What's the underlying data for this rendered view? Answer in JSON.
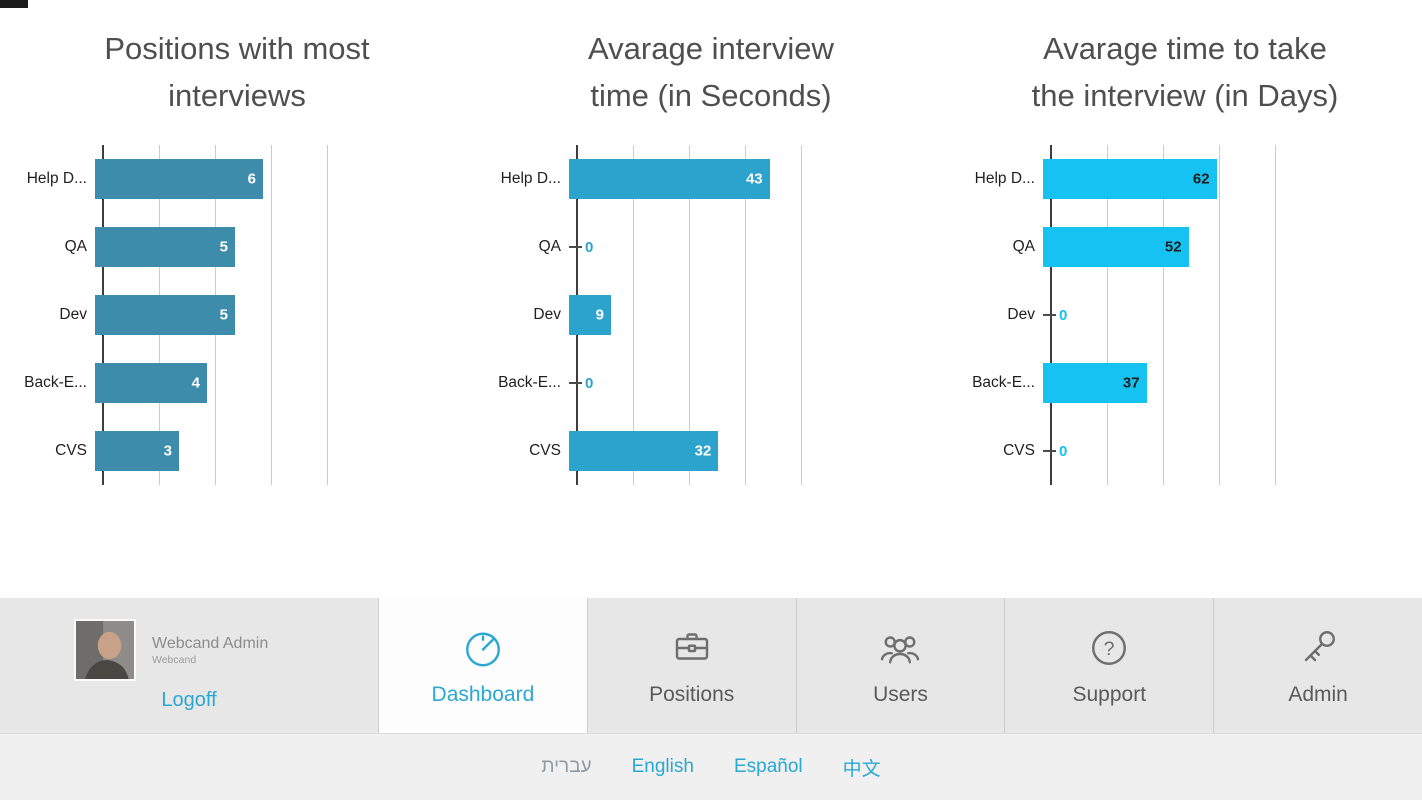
{
  "colors": {
    "accent": "#2aa7d2",
    "language_muted": "#8d9aa3",
    "nav_background": "#e7e7e7",
    "footer_background": "#f0f0f0"
  },
  "chart_data": [
    {
      "type": "bar",
      "orientation": "horizontal",
      "title": "Positions with most interviews",
      "title_display": "Positions with most\ninterviews",
      "categories": [
        "Help D...",
        "QA",
        "Dev",
        "Back-E...",
        "CVS"
      ],
      "values": [
        6,
        5,
        5,
        4,
        3
      ],
      "axis_max": 8,
      "gridlines": 5,
      "grid_on": true,
      "legend": "none",
      "bar_color": "#3e8cab",
      "value_label_color": "#ffffff"
    },
    {
      "type": "bar",
      "orientation": "horizontal",
      "title": "Avarage interview time (in Seconds)",
      "title_display": "Avarage interview\ntime (in Seconds)",
      "categories": [
        "Help D...",
        "QA",
        "Dev",
        "Back-E...",
        "CVS"
      ],
      "values": [
        43,
        0,
        9,
        0,
        32
      ],
      "axis_max": 48,
      "gridlines": 5,
      "grid_on": true,
      "legend": "none",
      "bar_color": "#2ba3cd",
      "value_label_color": "#ffffff"
    },
    {
      "type": "bar",
      "orientation": "horizontal",
      "title": "Avarage time to take the interview (in Days)",
      "title_display": "Avarage time to take\nthe interview (in Days)",
      "categories": [
        "Help D...",
        "QA",
        "Dev",
        "Back-E...",
        "CVS"
      ],
      "values": [
        62,
        52,
        0,
        37,
        0
      ],
      "axis_max": 80,
      "gridlines": 5,
      "grid_on": true,
      "legend": "none",
      "bar_color": "#15c2f2",
      "value_label_color": "#1f1f1f"
    }
  ],
  "nav": {
    "user": {
      "name": "Webcand Admin",
      "company": "Webcand",
      "logoff_label": "Logoff"
    },
    "tabs": [
      {
        "label": "Dashboard",
        "icon": "gauge-icon",
        "active": true
      },
      {
        "label": "Positions",
        "icon": "briefcase-icon",
        "active": false
      },
      {
        "label": "Users",
        "icon": "users-icon",
        "active": false
      },
      {
        "label": "Support",
        "icon": "question-circle-icon",
        "active": false
      },
      {
        "label": "Admin",
        "icon": "key-icon",
        "active": false
      }
    ]
  },
  "footer": {
    "languages": [
      {
        "label": "עברית",
        "muted": true
      },
      {
        "label": "English",
        "muted": false
      },
      {
        "label": "Español",
        "muted": false
      },
      {
        "label": "中文",
        "muted": false
      }
    ]
  }
}
